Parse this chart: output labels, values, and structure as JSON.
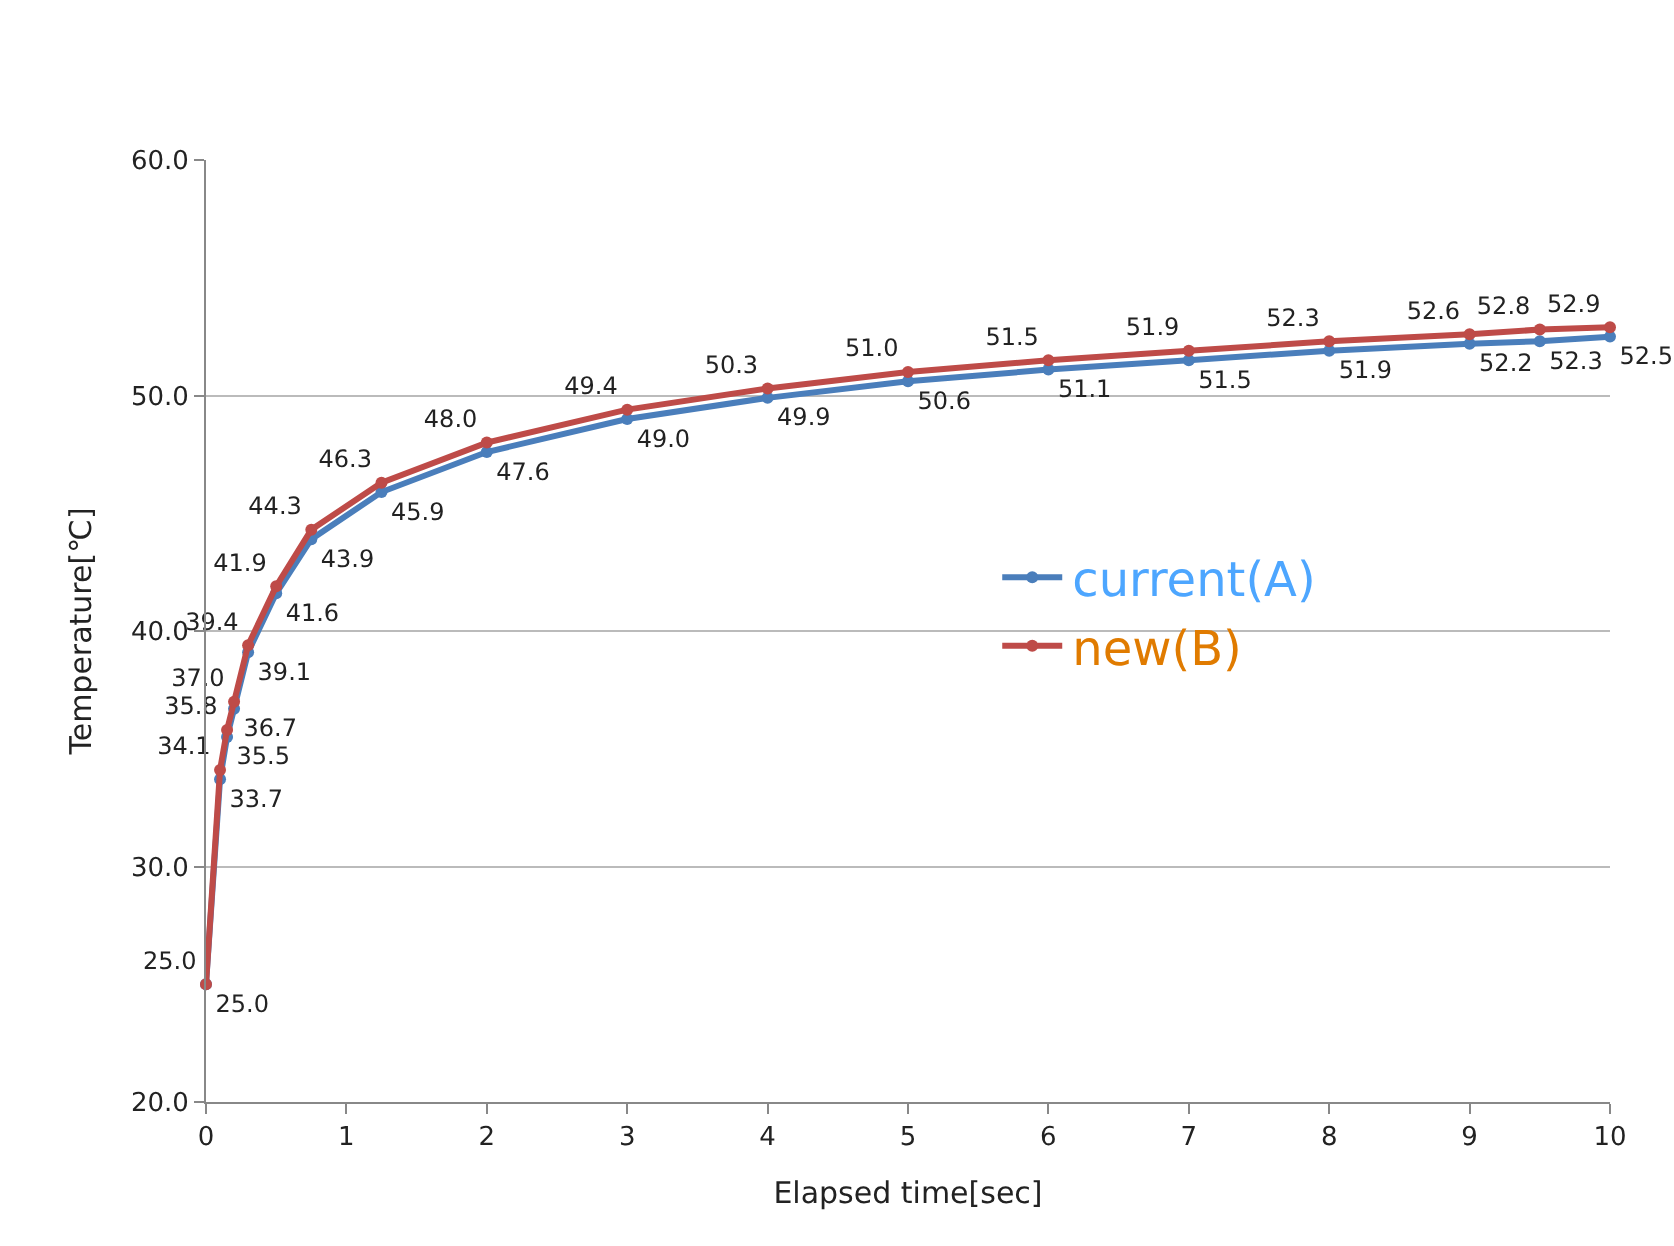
{
  "chart_data": {
    "type": "line",
    "xlabel": "Elapsed time[sec]",
    "ylabel": "Temperature[℃]",
    "x": [
      0,
      0.1,
      0.15,
      0.2,
      0.3,
      0.5,
      0.75,
      1.25,
      2,
      3,
      4,
      5,
      6,
      7,
      8,
      9,
      9.5,
      10
    ],
    "series": [
      {
        "name": "current(A)",
        "color": "#4a7ebb",
        "values": [
          25.0,
          33.7,
          35.5,
          36.7,
          39.1,
          41.6,
          43.9,
          45.9,
          47.6,
          49.0,
          49.9,
          50.6,
          51.1,
          51.5,
          51.9,
          52.2,
          52.3,
          52.5
        ],
        "value_labels": [
          "25.0",
          "33.7",
          "35.5",
          "36.7",
          "39.1",
          "41.6",
          "43.9",
          "45.9",
          "47.6",
          "49.0",
          "49.9",
          "50.6",
          "51.1",
          "51.5",
          "51.9",
          "52.2",
          "52.3",
          "52.5"
        ]
      },
      {
        "name": "new(B)",
        "color": "#be4b48",
        "values": [
          25.0,
          34.1,
          35.8,
          37.0,
          39.4,
          41.9,
          44.3,
          46.3,
          48.0,
          49.4,
          50.3,
          51.0,
          51.5,
          51.9,
          52.3,
          52.6,
          52.8,
          52.9
        ],
        "value_labels": [
          "25.0",
          "34.1",
          "35.8",
          "37.0",
          "39.4",
          "41.9",
          "44.3",
          "46.3",
          "48.0",
          "49.4",
          "50.3",
          "51.0",
          "51.5",
          "51.9",
          "52.3",
          "52.6",
          "52.8",
          "52.9"
        ]
      }
    ],
    "xlim": [
      0,
      10
    ],
    "xticks": [
      0,
      1,
      2,
      3,
      4,
      5,
      6,
      7,
      8,
      9,
      10
    ],
    "ylim": [
      20,
      60
    ],
    "yticks": [
      {
        "value": 20,
        "label": "20.0"
      },
      {
        "value": 30,
        "label": "30.0"
      },
      {
        "value": 40,
        "label": "40.0"
      },
      {
        "value": 50,
        "label": "50.0"
      },
      {
        "value": 60,
        "label": "60.0"
      }
    ],
    "grid": "y",
    "legend": "right",
    "marker": "circle",
    "line_style": "solid"
  }
}
